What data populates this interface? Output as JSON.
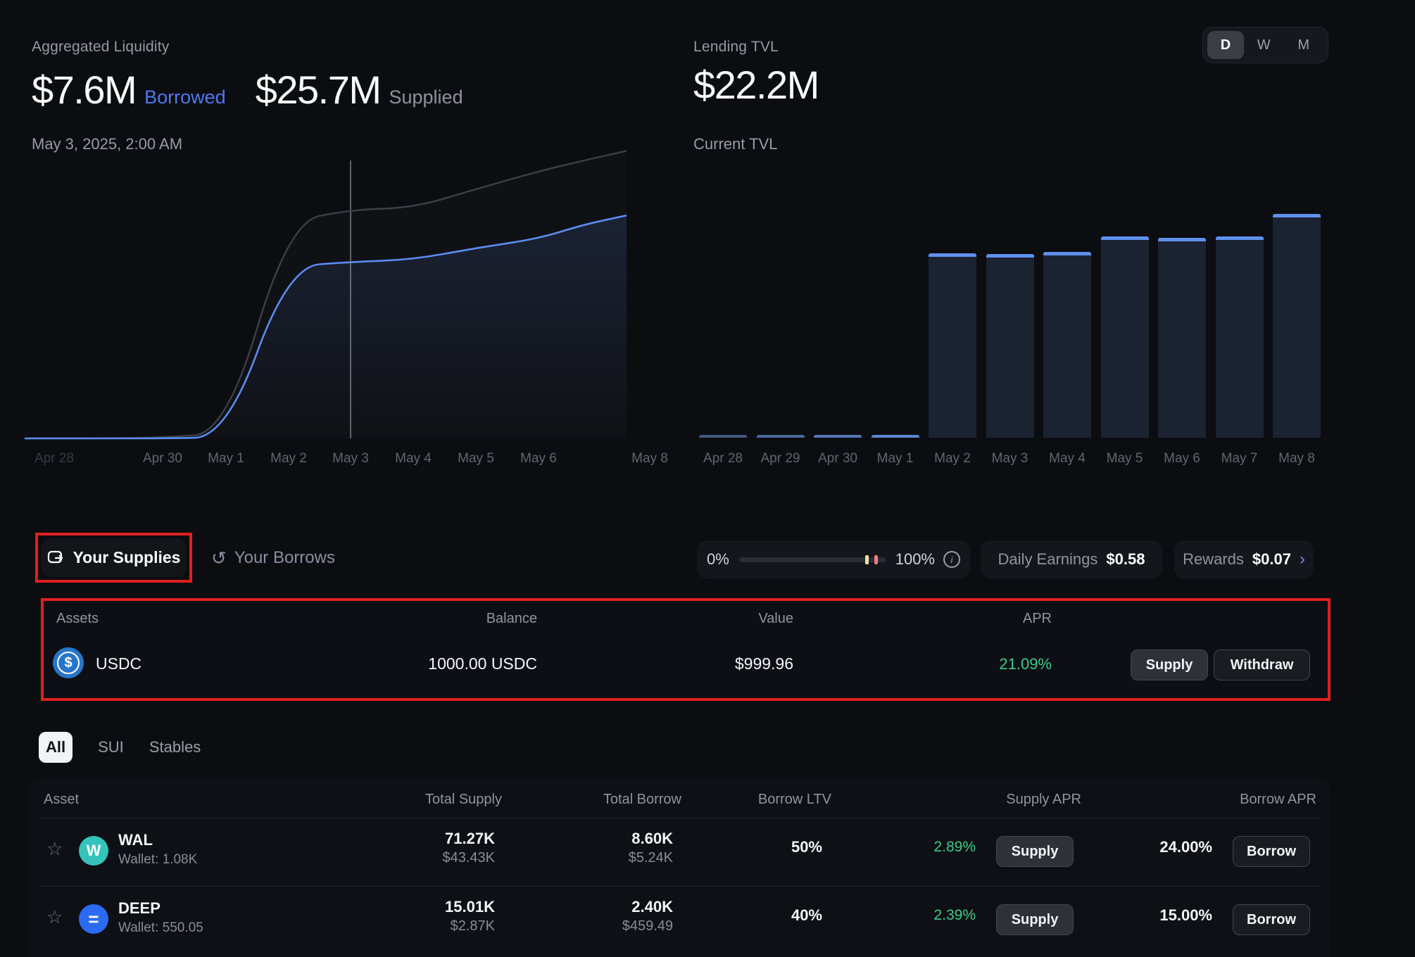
{
  "left_chart": {
    "title": "Aggregated Liquidity",
    "borrowed_value": "$7.6M",
    "borrowed_label": "Borrowed",
    "supplied_value": "$25.7M",
    "supplied_label": "Supplied",
    "hover_date": "May 3, 2025, 2:00 AM"
  },
  "right_chart": {
    "title": "Lending TVL",
    "value": "$22.2M",
    "subtitle": "Current TVL",
    "range_d": "D",
    "range_w": "W",
    "range_m": "M",
    "selected_range": "D"
  },
  "chart_data": [
    {
      "type": "line",
      "title": "Aggregated Liquidity",
      "x": [
        "Apr 28",
        "Apr 29",
        "Apr 30",
        "May 1",
        "May 2",
        "May 3",
        "May 4",
        "May 5",
        "May 6",
        "May 7",
        "May 8"
      ],
      "x_axis_labels_shown": [
        "Apr 28",
        "Apr 30",
        "May 1",
        "May 2",
        "May 3",
        "May 4",
        "May 5",
        "May 6",
        "May 8"
      ],
      "series": [
        {
          "name": "Supplied ($M)",
          "color": "#3b4049",
          "values": [
            0,
            0,
            0.1,
            0.6,
            24.3,
            25.7,
            25.9,
            28.0,
            30.0,
            31.2,
            32.3
          ]
        },
        {
          "name": "Borrowed ($M)",
          "color": "#5b8cf0",
          "values": [
            0,
            0,
            0,
            0.05,
            7.4,
            7.6,
            7.7,
            8.2,
            8.6,
            9.2,
            9.6
          ]
        }
      ],
      "crosshair_x": "May 3",
      "hover_readout": {
        "borrowed": 7.6,
        "supplied": 25.7
      },
      "legend": "none",
      "grid": "off"
    },
    {
      "type": "bar",
      "title": "Lending TVL ($M)",
      "categories": [
        "Apr 28",
        "Apr 29",
        "Apr 30",
        "May 1",
        "May 2",
        "May 3",
        "May 4",
        "May 5",
        "May 6",
        "May 7",
        "May 8"
      ],
      "values": [
        0.2,
        0.2,
        0.25,
        0.3,
        18.3,
        18.2,
        18.4,
        20.0,
        19.8,
        20.0,
        22.2
      ],
      "ylim": [
        0,
        22.2
      ],
      "bar_color": "#1b2332",
      "bar_cap_color": "#6090ee"
    }
  ],
  "positions_bar": {
    "supplies_tab": "Your Supplies",
    "borrows_tab": "Your Borrows",
    "utilization_min": "0%",
    "utilization_max": "100%",
    "info_glyph": "i",
    "daily_earnings_label": "Daily Earnings",
    "daily_earnings_value": "$0.58",
    "rewards_label": "Rewards",
    "rewards_value": "$0.07",
    "rewards_chevron": "›"
  },
  "supplies_table": {
    "columns": [
      "Assets",
      "Balance",
      "Value",
      "APR"
    ],
    "rows": [
      {
        "asset": "USDC",
        "icon_glyph": "$",
        "balance": "1000.00 USDC",
        "value": "$999.96",
        "apr": "21.09%",
        "supply_label": "Supply",
        "withdraw_label": "Withdraw"
      }
    ]
  },
  "market_tabs": {
    "all": "All",
    "sui": "SUI",
    "stables": "Stables",
    "selected": "All"
  },
  "markets_table": {
    "columns": [
      "Asset",
      "Total Supply",
      "Total Borrow",
      "Borrow LTV",
      "Supply APR",
      "Borrow APR"
    ],
    "rows": [
      {
        "symbol": "WAL",
        "icon_glyph": "W",
        "wallet": "Wallet: 1.08K",
        "total_supply": "71.27K",
        "total_supply_usd": "$43.43K",
        "total_borrow": "8.60K",
        "total_borrow_usd": "$5.24K",
        "borrow_ltv": "50%",
        "supply_apr": "2.89%",
        "supply_label": "Supply",
        "borrow_apr": "24.00%",
        "borrow_label": "Borrow"
      },
      {
        "symbol": "DEEP",
        "icon_glyph": "=",
        "wallet": "Wallet: 550.05",
        "total_supply": "15.01K",
        "total_supply_usd": "$2.87K",
        "total_borrow": "2.40K",
        "total_borrow_usd": "$459.49",
        "borrow_ltv": "40%",
        "supply_apr": "2.39%",
        "supply_label": "Supply",
        "borrow_apr": "15.00%",
        "borrow_label": "Borrow"
      }
    ]
  },
  "icons": {
    "supplies": "wallet-out-icon",
    "borrows": "undo-arrow-icon",
    "undo_glyph": "↺",
    "star_glyph": "☆",
    "info": "info-circle-icon"
  },
  "colors": {
    "accent_blue": "#5b8cf0",
    "green": "#3fcb8a",
    "annotation_red": "#e01f1f",
    "usdc_blue": "#2775ca",
    "wal_teal": "#35c2bb",
    "deep_blue": "#2b6bf3",
    "bar_fill": "#1b2332",
    "bar_cap": "#6090ee",
    "util_tick_yellow": "#efe7a8",
    "util_tick_pink": "#e87e8a"
  }
}
